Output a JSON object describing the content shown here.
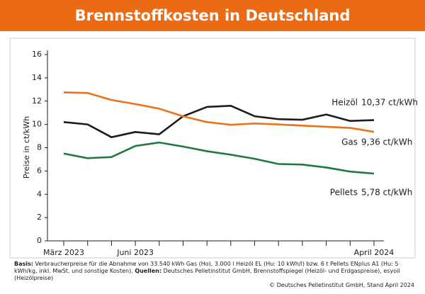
{
  "chart_data": {
    "type": "line",
    "title": "Brennstoffkosten in Deutschland",
    "y_label": "Preise in ct/kWh",
    "categories": [
      "März 2023",
      null,
      null,
      "Juni 2023",
      null,
      null,
      null,
      null,
      null,
      null,
      null,
      null,
      null,
      "April 2024"
    ],
    "series": [
      {
        "name": "Heizöl",
        "end_label": "10,37 ct/kWh",
        "color": "#1d1d1b",
        "values": [
          10.2,
          10.0,
          8.9,
          9.35,
          9.15,
          10.7,
          11.5,
          11.6,
          10.7,
          10.45,
          10.4,
          10.85,
          10.3,
          10.37
        ]
      },
      {
        "name": "Gas",
        "end_label": "9,36 ct/kWh",
        "color": "#e8731a",
        "values": [
          12.75,
          12.7,
          12.1,
          11.75,
          11.35,
          10.7,
          10.2,
          9.97,
          10.08,
          10.0,
          9.9,
          9.8,
          9.7,
          9.36
        ]
      },
      {
        "name": "Pellets",
        "end_label": "5,78 ct/kWh",
        "color": "#1f7a3c",
        "values": [
          7.5,
          7.1,
          7.2,
          8.15,
          8.45,
          8.1,
          7.7,
          7.4,
          7.05,
          6.6,
          6.55,
          6.3,
          5.95,
          5.78
        ]
      }
    ],
    "ylim": [
      0,
      16
    ],
    "yticks": [
      0,
      2,
      4,
      6,
      8,
      10,
      12,
      14,
      16
    ],
    "footnote": {
      "basis_label": "Basis:",
      "basis_text": "Verbraucherpreise für die Abnahme von 33.540 kWh Gas (Ho), 3.000 l Heizöl EL (Hu: 10 kWh/l) bzw. 6 t Pellets ENplus A1 (Hu: 5 kWh/kg, inkl. MwSt. und sonstige Kosten).",
      "sources_label": "Quellen:",
      "sources_text": "Deutsches Pelletinstitut GmbH, Brennstoffspiegel (Heizöl- und Erdgaspreise), esyoil (Heizölpreise)",
      "copyright": "© Deutsches Pelletinstitut GmbH, Stand April 2024"
    }
  }
}
